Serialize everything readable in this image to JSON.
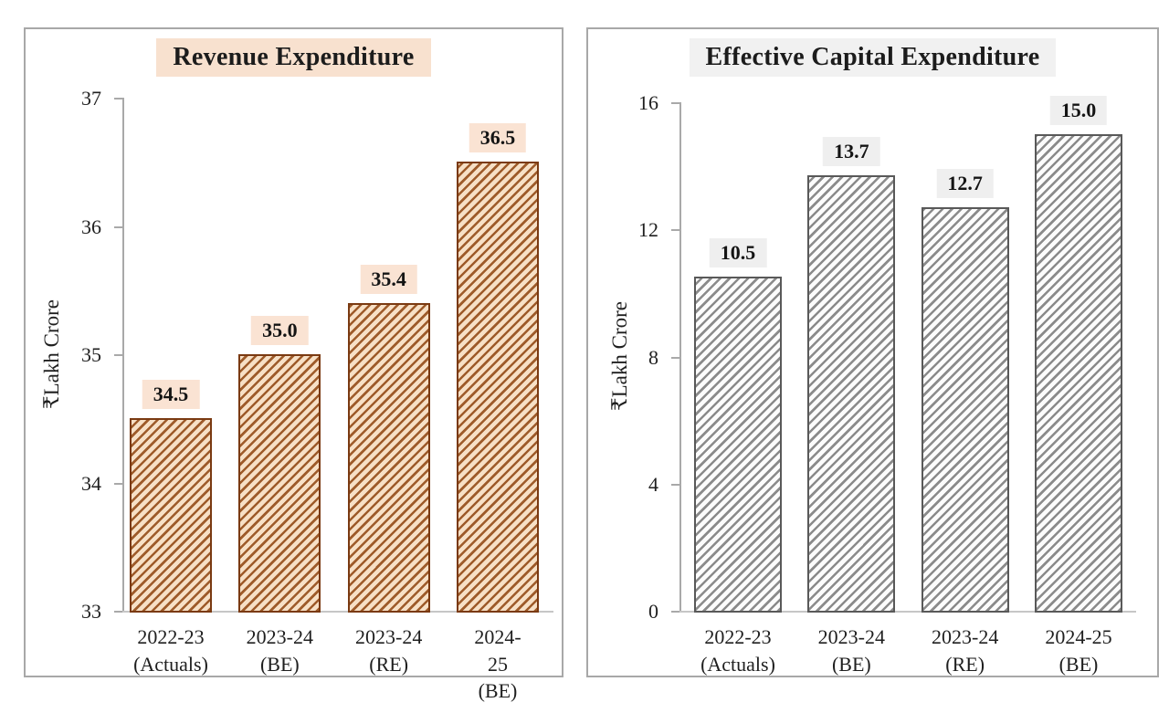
{
  "figure": {
    "background": "#ffffff",
    "panel_border_color": "#a8a8a8",
    "axis_color": "#a9a9a9",
    "baseline_color": "#c6c6c6",
    "text_color": "#1f1f1f"
  },
  "chart_data": [
    {
      "type": "bar",
      "title": "Revenue Expenditure",
      "ylabel": "₹Lakh Crore",
      "xlabel": "",
      "categories": [
        "2022-23\n(Actuals)",
        "2023-24\n(BE)",
        "2023-24\n(RE)",
        "2024-25\n(BE)"
      ],
      "values": [
        34.5,
        35.0,
        35.4,
        36.5
      ],
      "value_labels": [
        "34.5",
        "35.0",
        "35.4",
        "36.5"
      ],
      "ylim": [
        33,
        37
      ],
      "yticks": [
        33,
        34,
        35,
        36,
        37
      ],
      "grid": false,
      "legend": null,
      "bar_hatch": "diagonal-forward",
      "colors": {
        "stripe": "#9e5b2a",
        "fill": "#f7e0c6",
        "border": "#7a3a12",
        "label_bg": "#fae3d3",
        "title_bg": "#f8e1cf"
      }
    },
    {
      "type": "bar",
      "title": "Effective Capital Expenditure",
      "ylabel": "₹Lakh Crore",
      "xlabel": "",
      "categories": [
        "2022-23\n(Actuals)",
        "2023-24\n(BE)",
        "2023-24\n(RE)",
        "2024-25\n(BE)"
      ],
      "values": [
        10.5,
        13.7,
        12.7,
        15.0
      ],
      "value_labels": [
        "10.5",
        "13.7",
        "12.7",
        "15.0"
      ],
      "ylim": [
        0,
        16
      ],
      "yticks": [
        0,
        4,
        8,
        12,
        16
      ],
      "grid": false,
      "legend": null,
      "bar_hatch": "diagonal-forward",
      "colors": {
        "stripe": "#8b8b8b",
        "fill": "#fcfcfc",
        "border": "#595959",
        "label_bg": "#efefef",
        "title_bg": "#f1f1f1"
      }
    }
  ]
}
